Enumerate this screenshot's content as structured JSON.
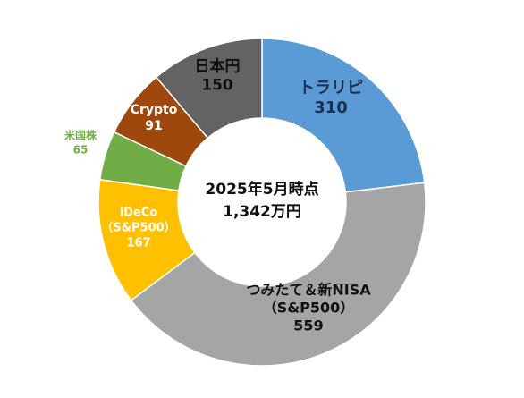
{
  "chart_data": {
    "type": "donut",
    "categories": [
      [
        "トラリピ"
      ],
      [
        "つみたて＆新NISA",
        "（S&P500）"
      ],
      [
        "iDeCo",
        "（S&P500）"
      ],
      [
        "米国株"
      ],
      [
        "Crypto"
      ],
      [
        "日本円"
      ]
    ],
    "values": [
      310,
      559,
      167,
      65,
      91,
      150
    ],
    "colors": [
      "#5b9bd5",
      "#a5a5a5",
      "#ffc000",
      "#70ad47",
      "#9e480e",
      "#636363"
    ],
    "label_colors": [
      "#1f2f4f",
      "#111111",
      "#ffffff",
      "#70ad47",
      "#ffffff",
      "#111111"
    ],
    "center_text": [
      "2025年5月時点",
      "1,342万円"
    ]
  }
}
